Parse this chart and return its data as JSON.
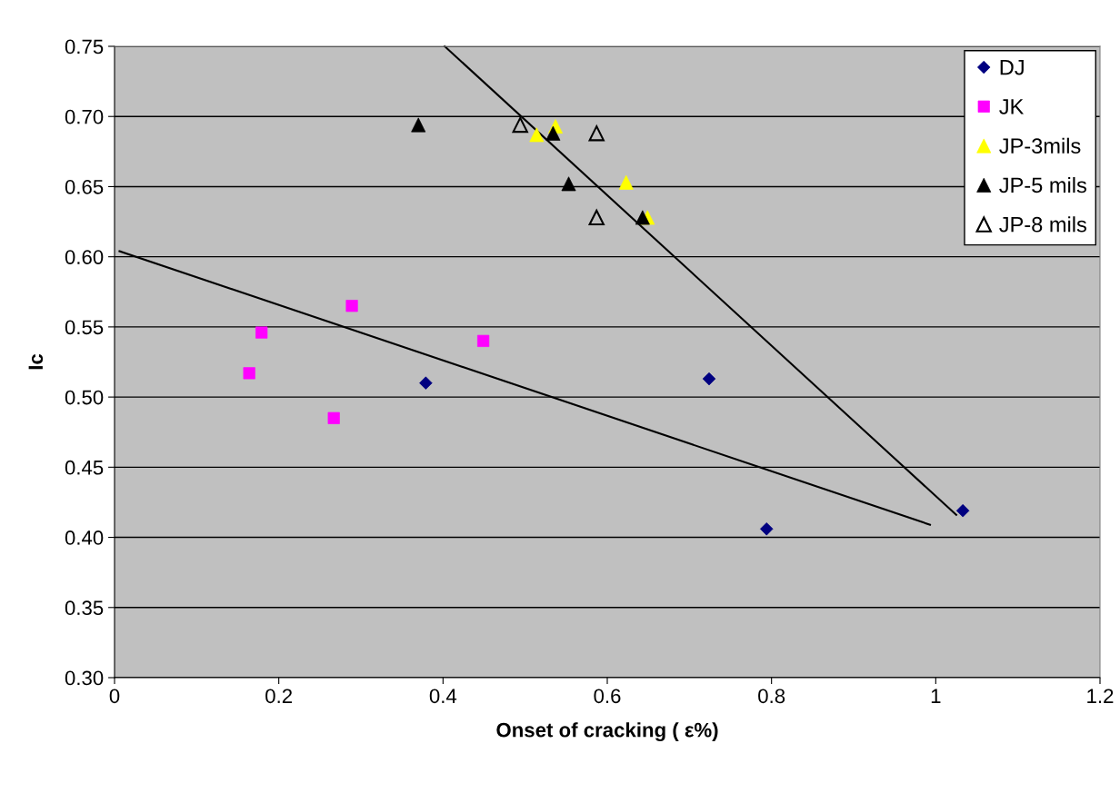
{
  "chart_data": {
    "type": "scatter",
    "xlabel": "Onset of cracking ( ε%)",
    "ylabel": "Ic",
    "xlim": [
      0,
      1.2
    ],
    "xticks": [
      0,
      0.2,
      0.4,
      0.6,
      0.8,
      1,
      1.2
    ],
    "ylim": [
      0.3,
      0.75
    ],
    "yticks": [
      {
        "value": 0.3,
        "label": "0.30"
      },
      {
        "value": 0.35,
        "label": "0.35"
      },
      {
        "value": 0.4,
        "label": "0.40"
      },
      {
        "value": 0.45,
        "label": "0.45"
      },
      {
        "value": 0.5,
        "label": "0.50"
      },
      {
        "value": 0.55,
        "label": "0.55"
      },
      {
        "value": 0.6,
        "label": "0.60"
      },
      {
        "value": 0.65,
        "label": "0.65"
      },
      {
        "value": 0.7,
        "label": "0.70"
      },
      {
        "value": 0.75,
        "label": "0.75"
      }
    ],
    "grid": "y",
    "legend": "top right",
    "series": [
      {
        "name": "DJ",
        "color": "#000080",
        "marker": "diamond",
        "x": [
          0.379,
          0.724,
          0.794,
          1.033
        ],
        "values": [
          0.51,
          0.513,
          0.406,
          0.419
        ]
      },
      {
        "name": "JK",
        "color": "#ff00ff",
        "marker": "square",
        "x": [
          0.164,
          0.179,
          0.267,
          0.289,
          0.449
        ],
        "values": [
          0.517,
          0.546,
          0.485,
          0.565,
          0.54
        ]
      },
      {
        "name": "JP-3mils",
        "color": "#ffff00",
        "marker": "triangle",
        "x": [
          0.514,
          0.537,
          0.623,
          0.649
        ],
        "values": [
          0.687,
          0.693,
          0.653,
          0.628
        ]
      },
      {
        "name": "JP-5 mils",
        "color": "#000000",
        "marker": "triangle",
        "x": [
          0.37,
          0.534,
          0.553,
          0.643
        ],
        "values": [
          0.694,
          0.688,
          0.652,
          0.628
        ]
      },
      {
        "name": "JP-8 mils",
        "color": "#000000",
        "marker": "triangle",
        "x": [
          0.494,
          0.587,
          0.587
        ],
        "values": [
          0.694,
          0.688,
          0.628
        ]
      },
      {
        "type": "line",
        "color": "#000000",
        "marker": "none",
        "x": [
          0.402,
          1.025
        ],
        "values": [
          0.75,
          0.416
        ]
      },
      {
        "type": "line",
        "color": "#000000",
        "marker": "none",
        "x": [
          0.006,
          0.993
        ],
        "values": [
          0.604,
          0.409
        ]
      }
    ]
  }
}
